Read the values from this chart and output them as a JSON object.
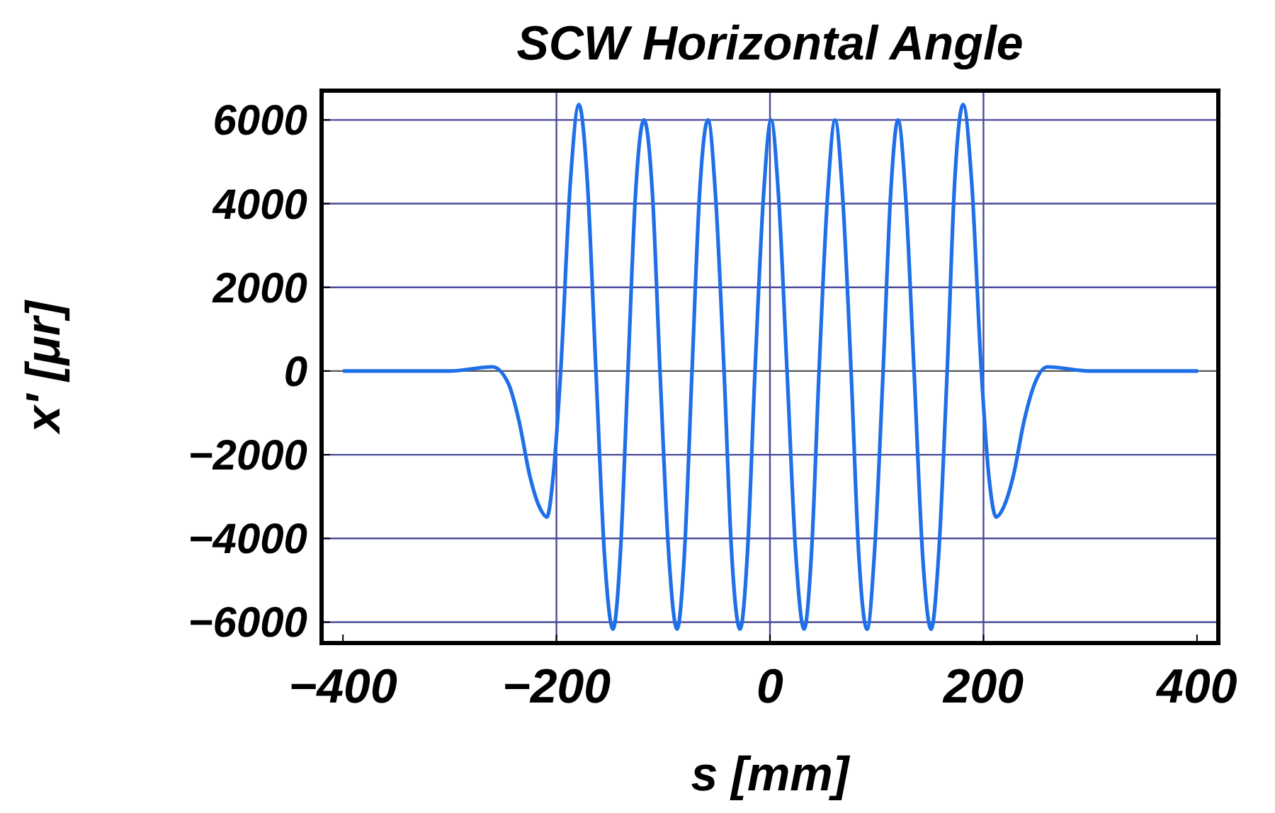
{
  "chart_data": {
    "type": "line",
    "title": "SCW Horizontal Angle",
    "xlabel": "s [mm]",
    "ylabel": "x' [μr]",
    "x": [
      -400,
      -300,
      -260,
      -245,
      -235,
      -225,
      -215,
      -209,
      -203,
      -196,
      -187,
      -179,
      -171,
      -163,
      -155,
      -147,
      -140,
      -133,
      -126,
      -118,
      -110,
      -103,
      -95,
      -87,
      -80,
      -73,
      -66,
      -58,
      -51,
      -43,
      -36,
      -28,
      -21,
      -14,
      -6,
      1,
      8,
      16,
      24,
      32,
      39,
      46,
      54,
      61,
      68,
      76,
      83,
      91,
      98,
      106,
      113,
      120,
      127,
      135,
      143,
      151,
      158,
      166,
      173,
      181,
      189,
      198,
      205,
      212,
      218,
      228,
      238,
      248,
      260,
      300,
      401
    ],
    "series": [
      {
        "color": "#1f6fe8",
        "values": [
          0,
          0,
          100,
          -300,
          -1200,
          -2500,
          -3300,
          -3490,
          -2500,
          0,
          4500,
          6370,
          4500,
          0,
          -4400,
          -6170,
          -4300,
          0,
          4200,
          6000,
          4200,
          0,
          -4300,
          -6170,
          -4300,
          0,
          4200,
          6000,
          4200,
          0,
          -4300,
          -6170,
          -4300,
          0,
          4200,
          6000,
          4200,
          0,
          -4300,
          -6170,
          -4300,
          0,
          4200,
          6000,
          4200,
          0,
          -4300,
          -6170,
          -4300,
          0,
          4200,
          6000,
          4200,
          0,
          -4400,
          -6170,
          -4400,
          0,
          4500,
          6370,
          4500,
          0,
          -2500,
          -3490,
          -3300,
          -2500,
          -1200,
          -300,
          100,
          0,
          0
        ]
      }
    ],
    "xlim": [
      -420,
      420
    ],
    "ylim": [
      -6500,
      6700
    ],
    "xticks": [
      {
        "value": -400,
        "label": "−400"
      },
      {
        "value": -200,
        "label": "−200"
      },
      0,
      200,
      400
    ],
    "yticks": [
      {
        "value": -6000,
        "label": "−6000"
      },
      {
        "value": -4000,
        "label": "−4000"
      },
      {
        "value": -2000,
        "label": "−2000"
      },
      0,
      2000,
      4000,
      6000
    ],
    "grid": "y",
    "ref_lines": [
      {
        "axis": "x",
        "value": -200,
        "color": "#4a4a9a"
      },
      {
        "axis": "x",
        "value": 0,
        "color": "#4a4a9a"
      },
      {
        "axis": "x",
        "value": 200,
        "color": "#4a4a9a"
      }
    ],
    "marker": "none",
    "line_style": "solid"
  }
}
